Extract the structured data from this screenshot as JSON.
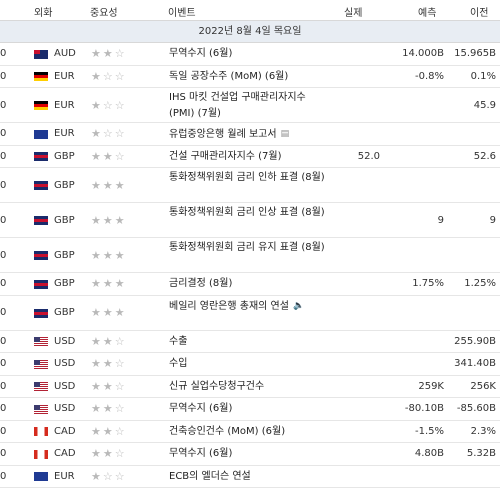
{
  "header": {
    "currency": "외화",
    "importance": "중요성",
    "event": "이벤트",
    "actual": "실제",
    "forecast": "예측",
    "previous": "이전"
  },
  "date": "2022년 8월 4일 목요일",
  "rows": [
    {
      "time": "0",
      "flag": "au",
      "currency": "AUD",
      "stars": "★★☆",
      "event": "무역수지 (6월)",
      "actual": "",
      "forecast": "14.000B",
      "previous": "15.965B",
      "lines": 1,
      "icon": ""
    },
    {
      "time": "0",
      "flag": "de",
      "currency": "EUR",
      "stars": "★☆☆",
      "event": "독일 공장수주 (MoM) (6월)",
      "actual": "",
      "forecast": "-0.8%",
      "previous": "0.1%",
      "lines": 1,
      "icon": ""
    },
    {
      "time": "0",
      "flag": "de",
      "currency": "EUR",
      "stars": "★☆☆",
      "event": "IHS 마킷 건설업 구매관리자지수 (PMI) (7월)",
      "actual": "",
      "forecast": "",
      "previous": "45.9",
      "lines": 2,
      "icon": ""
    },
    {
      "time": "0",
      "flag": "eu",
      "currency": "EUR",
      "stars": "★☆☆",
      "event": "유럽중앙은행 월례 보고서",
      "actual": "",
      "forecast": "",
      "previous": "",
      "lines": 1,
      "icon": "report-icon"
    },
    {
      "time": "0",
      "flag": "gb",
      "currency": "GBP",
      "stars": "★★☆",
      "event": "건설 구매관리자지수 (7월)",
      "actual": "52.0",
      "forecast": "",
      "previous": "52.6",
      "lines": 1,
      "icon": ""
    },
    {
      "time": "0",
      "flag": "gb",
      "currency": "GBP",
      "stars": "★★★",
      "event": "통화정책위원회 금리 인하 표결 (8월)",
      "actual": "",
      "forecast": "",
      "previous": "",
      "lines": 2,
      "icon": ""
    },
    {
      "time": "0",
      "flag": "gb",
      "currency": "GBP",
      "stars": "★★★",
      "event": "통화정책위원회 금리 인상 표결 (8월)",
      "actual": "",
      "forecast": "9",
      "previous": "9",
      "lines": 2,
      "icon": ""
    },
    {
      "time": "0",
      "flag": "gb",
      "currency": "GBP",
      "stars": "★★★",
      "event": "통화정책위원회 금리 유지 표결 (8월)",
      "actual": "",
      "forecast": "",
      "previous": "",
      "lines": 2,
      "icon": ""
    },
    {
      "time": "0",
      "flag": "gb",
      "currency": "GBP",
      "stars": "★★★",
      "event": "금리결정 (8월)",
      "actual": "",
      "forecast": "1.75%",
      "previous": "1.25%",
      "lines": 1,
      "icon": ""
    },
    {
      "time": "0",
      "flag": "gb",
      "currency": "GBP",
      "stars": "★★★",
      "event": "베일리 영란은행 총재의 연설",
      "actual": "",
      "forecast": "",
      "previous": "",
      "lines": 2,
      "icon": "speaker-icon"
    },
    {
      "time": "0",
      "flag": "us",
      "currency": "USD",
      "stars": "★★☆",
      "event": "수출",
      "actual": "",
      "forecast": "",
      "previous": "255.90B",
      "lines": 1,
      "icon": ""
    },
    {
      "time": "0",
      "flag": "us",
      "currency": "USD",
      "stars": "★★☆",
      "event": "수입",
      "actual": "",
      "forecast": "",
      "previous": "341.40B",
      "lines": 1,
      "icon": ""
    },
    {
      "time": "0",
      "flag": "us",
      "currency": "USD",
      "stars": "★★☆",
      "event": "신규 실업수당청구건수",
      "actual": "",
      "forecast": "259K",
      "previous": "256K",
      "lines": 1,
      "icon": ""
    },
    {
      "time": "0",
      "flag": "us",
      "currency": "USD",
      "stars": "★★☆",
      "event": "무역수지 (6월)",
      "actual": "",
      "forecast": "-80.10B",
      "previous": "-85.60B",
      "lines": 1,
      "icon": ""
    },
    {
      "time": "0",
      "flag": "ca",
      "currency": "CAD",
      "stars": "★★☆",
      "event": "건축승인건수 (MoM) (6월)",
      "actual": "",
      "forecast": "-1.5%",
      "previous": "2.3%",
      "lines": 1,
      "icon": ""
    },
    {
      "time": "0",
      "flag": "ca",
      "currency": "CAD",
      "stars": "★★☆",
      "event": "무역수지 (6월)",
      "actual": "",
      "forecast": "4.80B",
      "previous": "5.32B",
      "lines": 1,
      "icon": ""
    },
    {
      "time": "0",
      "flag": "eu",
      "currency": "EUR",
      "stars": "★☆☆",
      "event": "ECB의 엘더슨 연설",
      "actual": "",
      "forecast": "",
      "previous": "",
      "lines": 1,
      "icon": ""
    }
  ],
  "icons": {
    "report-icon": "▤",
    "speaker-icon": "🔈"
  }
}
